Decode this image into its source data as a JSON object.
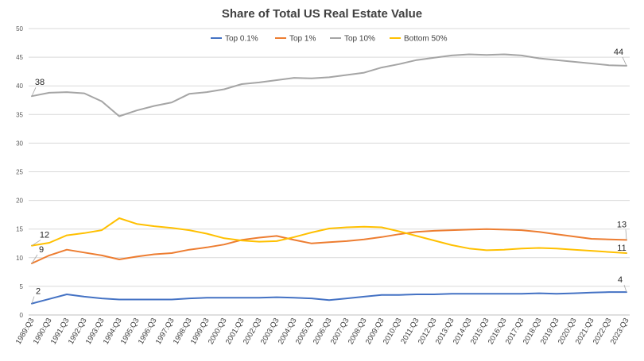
{
  "chart_data": {
    "type": "line",
    "title": "Share of Total US Real Estate Value",
    "legend_position": "top",
    "grid": true,
    "ylim": [
      0,
      50
    ],
    "yticks": [
      0,
      5,
      10,
      15,
      20,
      25,
      30,
      35,
      40,
      45,
      50
    ],
    "x": [
      "1989:Q3",
      "1990:Q3",
      "1991:Q3",
      "1992:Q3",
      "1993:Q3",
      "1994:Q3",
      "1995:Q3",
      "1996:Q3",
      "1997:Q3",
      "1998:Q3",
      "1999:Q3",
      "2000:Q3",
      "2001:Q3",
      "2002:Q3",
      "2003:Q3",
      "2004:Q3",
      "2005:Q3",
      "2006:Q3",
      "2007:Q3",
      "2008:Q3",
      "2009:Q3",
      "2010:Q3",
      "2011:Q3",
      "2012:Q3",
      "2013:Q3",
      "2014:Q3",
      "2015:Q3",
      "2016:Q3",
      "2017:Q3",
      "2018:Q3",
      "2019:Q3",
      "2020:Q3",
      "2021:Q3",
      "2022:Q3",
      "2023:Q3"
    ],
    "series": [
      {
        "name": "Top 0.1%",
        "color": "#4472c4",
        "values": [
          2.0,
          2.8,
          3.6,
          3.2,
          2.9,
          2.7,
          2.7,
          2.7,
          2.7,
          2.9,
          3.0,
          3.0,
          3.0,
          3.0,
          3.1,
          3.0,
          2.9,
          2.6,
          2.9,
          3.2,
          3.5,
          3.5,
          3.6,
          3.6,
          3.7,
          3.7,
          3.7,
          3.7,
          3.7,
          3.8,
          3.7,
          3.8,
          3.9,
          4.0,
          4.0
        ]
      },
      {
        "name": "Top 1%",
        "color": "#ed7d31",
        "values": [
          9.0,
          10.4,
          11.4,
          10.9,
          10.4,
          9.7,
          10.2,
          10.6,
          10.8,
          11.4,
          11.8,
          12.3,
          13.1,
          13.5,
          13.8,
          13.1,
          12.5,
          12.7,
          12.9,
          13.2,
          13.6,
          14.1,
          14.5,
          14.7,
          14.8,
          14.9,
          15.0,
          14.9,
          14.8,
          14.5,
          14.1,
          13.7,
          13.3,
          13.2,
          13.1
        ]
      },
      {
        "name": "Top 10%",
        "color": "#a5a5a5",
        "values": [
          38.2,
          38.8,
          38.9,
          38.7,
          37.3,
          34.7,
          35.7,
          36.5,
          37.1,
          38.6,
          38.9,
          39.4,
          40.3,
          40.6,
          41.0,
          41.4,
          41.3,
          41.5,
          41.9,
          42.3,
          43.2,
          43.8,
          44.5,
          44.9,
          45.3,
          45.5,
          45.4,
          45.5,
          45.3,
          44.8,
          44.5,
          44.2,
          43.9,
          43.6,
          43.5
        ]
      },
      {
        "name": "Bottom 50%",
        "color": "#ffc000",
        "values": [
          12.1,
          12.6,
          13.9,
          14.3,
          14.8,
          16.9,
          15.9,
          15.5,
          15.2,
          14.8,
          14.2,
          13.4,
          13.0,
          12.8,
          12.9,
          13.6,
          14.4,
          15.1,
          15.3,
          15.4,
          15.3,
          14.6,
          13.8,
          13.0,
          12.2,
          11.6,
          11.3,
          11.4,
          11.6,
          11.7,
          11.6,
          11.4,
          11.2,
          11.0,
          10.8
        ]
      }
    ],
    "data_labels": [
      {
        "series": 0,
        "index": 0,
        "text": "2"
      },
      {
        "series": 0,
        "index": 34,
        "text": "4"
      },
      {
        "series": 1,
        "index": 0,
        "text": "9"
      },
      {
        "series": 1,
        "index": 34,
        "text": "13"
      },
      {
        "series": 2,
        "index": 0,
        "text": "38"
      },
      {
        "series": 2,
        "index": 34,
        "text": "44"
      },
      {
        "series": 3,
        "index": 0,
        "text": "12"
      },
      {
        "series": 3,
        "index": 34,
        "text": "11"
      }
    ]
  }
}
